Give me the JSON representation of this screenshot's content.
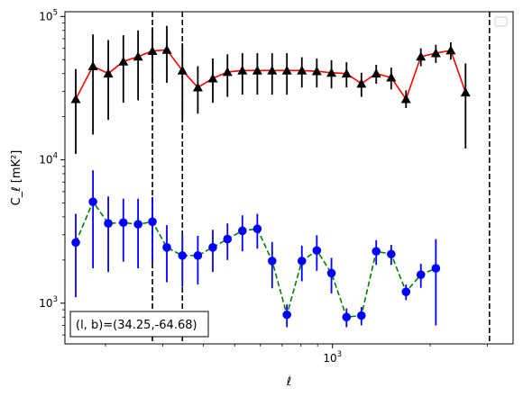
{
  "chart_data": {
    "type": "scatter",
    "title": "",
    "xlabel": "ℓ",
    "ylabel": "C_ℓ  [mK²]",
    "xscale": "log",
    "yscale": "log",
    "xlim": [
      150,
      3600
    ],
    "ylim": [
      520,
      108000
    ],
    "grid": false,
    "legend": "top-right",
    "x_ticks": [
      {
        "value": 1000,
        "base": "10",
        "exp": "3"
      }
    ],
    "y_ticks": [
      {
        "value": 1000,
        "base": "10",
        "exp": "3"
      },
      {
        "value": 10000,
        "base": "10",
        "exp": "4"
      },
      {
        "value": 100000,
        "base": "10",
        "exp": "5"
      }
    ],
    "x": [
      162,
      183,
      204,
      227,
      252,
      279,
      309,
      345,
      385,
      428,
      475,
      528,
      587,
      652,
      724,
      805,
      895,
      993,
      1105,
      1228,
      1364,
      1517,
      1685,
      1872,
      2082,
      2314,
      2570,
      2858,
      3175,
      3527
    ],
    "series": [
      {
        "color": "#ff0000",
        "marker": "triangle",
        "marker_color": "#000000",
        "errorbar_color": "#000000",
        "line_style": "solid",
        "values": [
          26500,
          45000,
          40000,
          48500,
          52500,
          57500,
          58500,
          42000,
          32000,
          37000,
          41000,
          42000,
          42000,
          42000,
          42000,
          42000,
          41500,
          40500,
          40000,
          34000,
          40000,
          37500,
          26500,
          52500,
          55500,
          58000,
          29500
        ],
        "errors_low": [
          15500,
          30000,
          21000,
          23500,
          26500,
          23500,
          24000,
          23000,
          11000,
          12000,
          13500,
          13500,
          13500,
          13500,
          13500,
          10000,
          9500,
          9000,
          8000,
          6500,
          6000,
          6500,
          3500,
          7500,
          8000,
          8000,
          17500
        ],
        "errors_high": [
          16500,
          30000,
          28500,
          25500,
          27500,
          26500,
          27500,
          23000,
          13000,
          14000,
          13500,
          13500,
          13500,
          13500,
          13500,
          10000,
          9500,
          9000,
          8000,
          6500,
          6000,
          6500,
          4000,
          7500,
          8000,
          8000,
          17500
        ],
        "x_index_offset": 0,
        "x_indices": [
          0,
          1,
          2,
          3,
          4,
          5,
          6,
          7,
          8,
          9,
          10,
          11,
          12,
          13,
          14,
          15,
          16,
          17,
          18,
          19,
          20,
          21,
          22,
          23,
          24,
          25,
          26
        ]
      },
      {
        "color": "#008000",
        "marker": "circle",
        "marker_color": "#0000ff",
        "errorbar_color": "#0000ff",
        "line_style": "dashed",
        "values": [
          2650,
          5100,
          3600,
          3650,
          3550,
          3700,
          2450,
          2150,
          2150,
          2450,
          2800,
          3200,
          3300,
          1970,
          830,
          1970,
          2330,
          1620,
          800,
          820,
          2300,
          2200,
          1200,
          1580,
          1750
        ],
        "errors_low": [
          1550,
          3350,
          1950,
          1700,
          1800,
          1800,
          1050,
          850,
          800,
          800,
          800,
          900,
          900,
          700,
          150,
          550,
          650,
          450,
          120,
          120,
          450,
          350,
          150,
          300,
          1050
        ],
        "errors_high": [
          1550,
          3350,
          1950,
          1700,
          1800,
          1800,
          1050,
          850,
          800,
          800,
          800,
          900,
          900,
          700,
          150,
          550,
          650,
          450,
          120,
          120,
          450,
          350,
          150,
          300,
          1050
        ],
        "x_indices": [
          0,
          1,
          2,
          3,
          4,
          5,
          6,
          7,
          8,
          9,
          10,
          11,
          12,
          13,
          14,
          15,
          16,
          17,
          18,
          19,
          20,
          21,
          22,
          23,
          24
        ]
      }
    ],
    "vertical_lines": [
      {
        "x": 279,
        "style": "dashed",
        "color": "#000000"
      },
      {
        "x": 345,
        "style": "dashed",
        "color": "#000000"
      },
      {
        "x": 3045,
        "style": "dashed",
        "color": "#000000"
      }
    ],
    "annotation": "(l, b)=(34.25,-64.68)"
  }
}
